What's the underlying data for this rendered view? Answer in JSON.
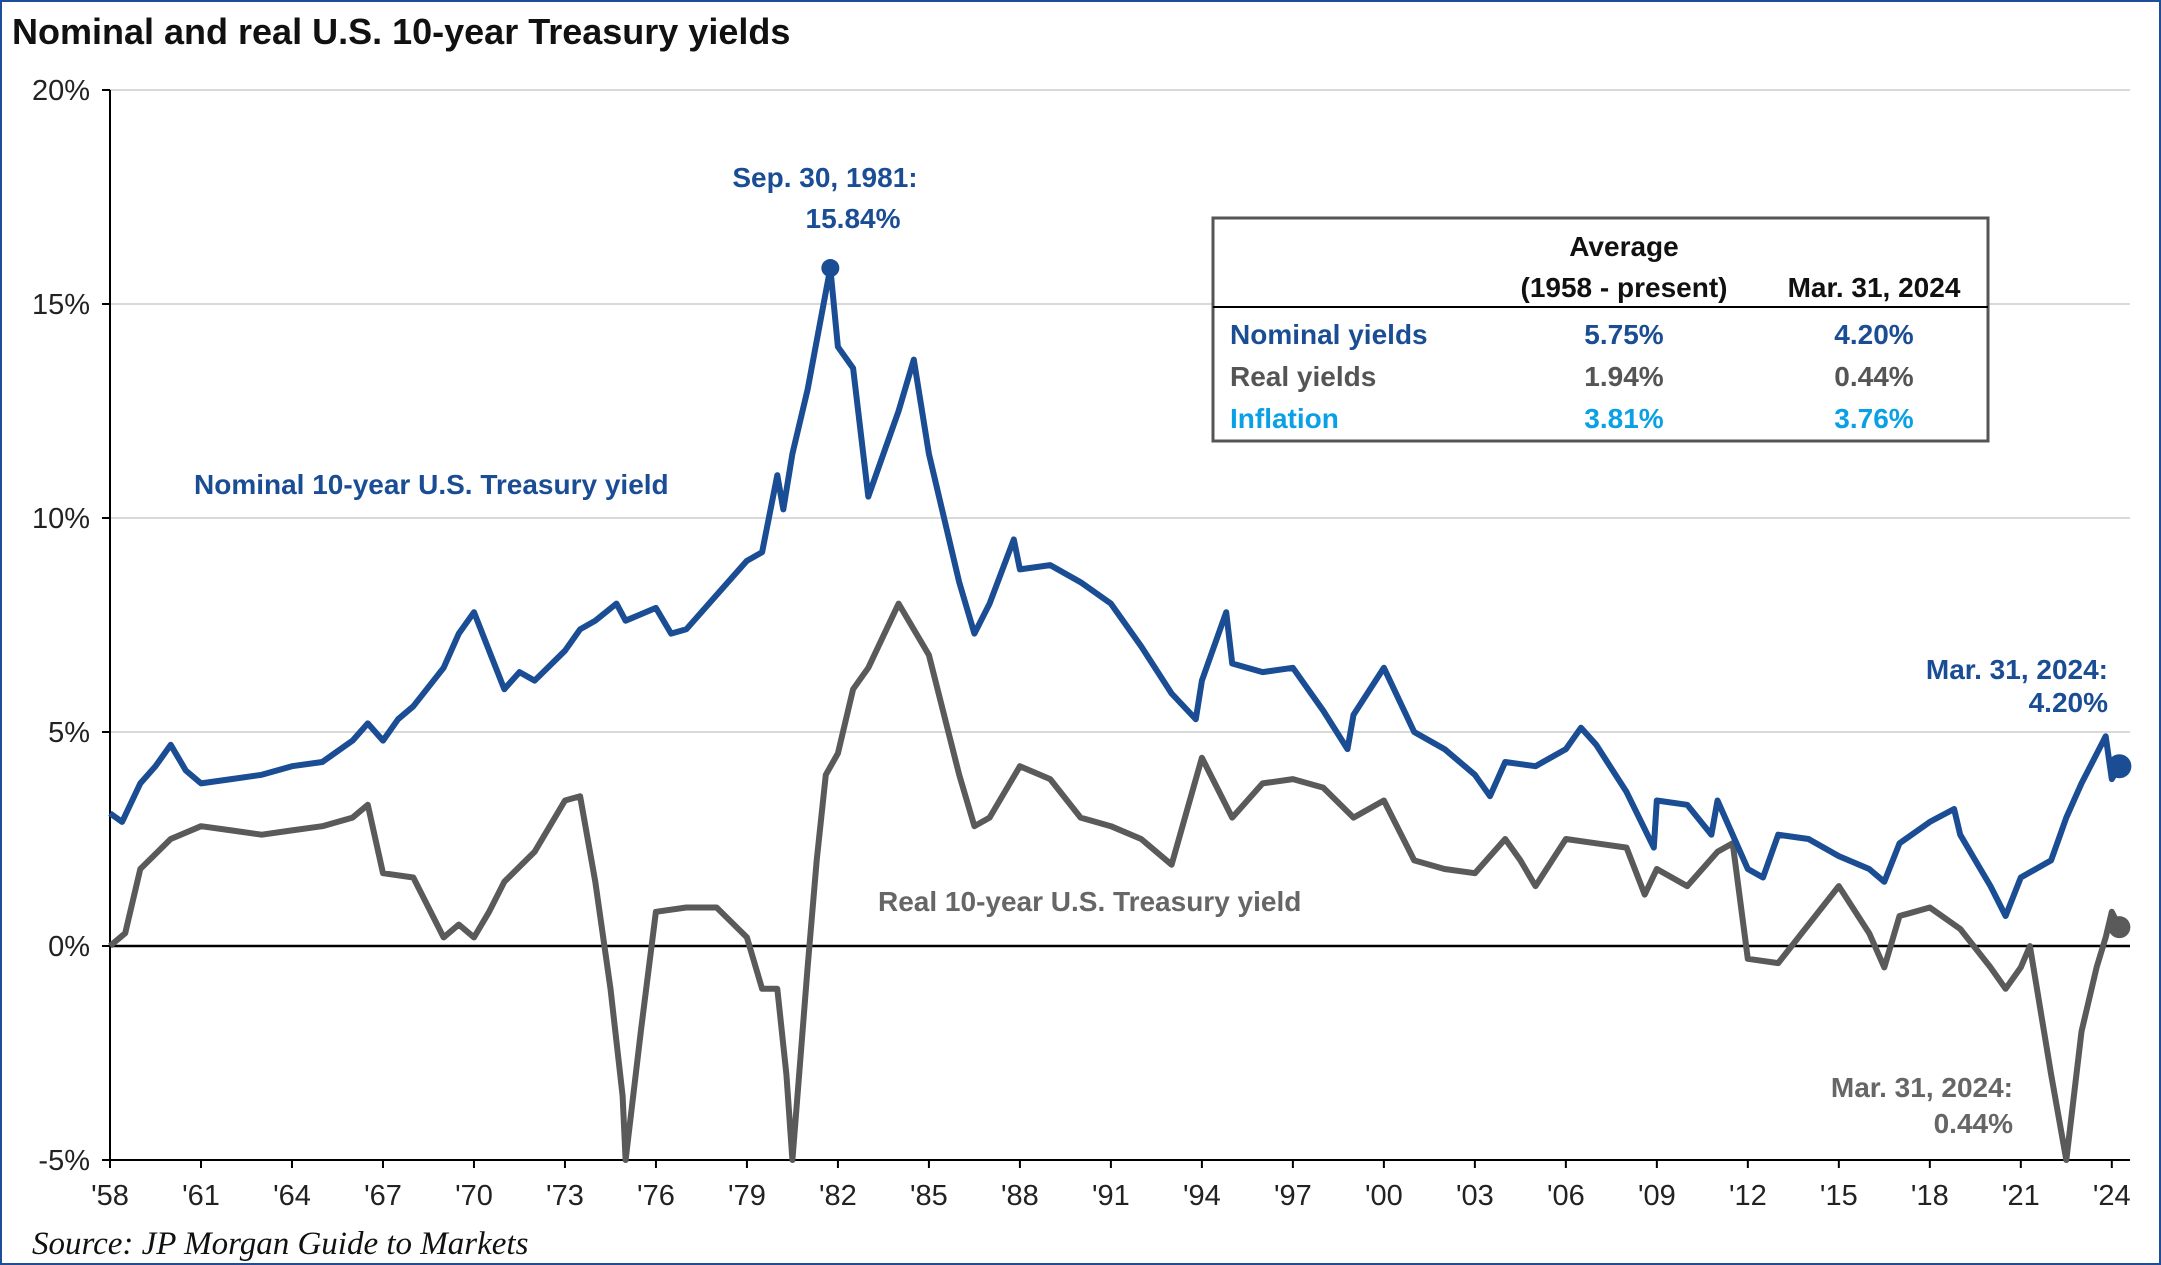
{
  "chart_data": {
    "type": "line",
    "title": "Nominal and real U.S. 10-year Treasury yields",
    "source": "Source: JP Morgan Guide to Markets",
    "y_ticks": [
      "20%",
      "15%",
      "10%",
      "5%",
      "0%",
      "-5%"
    ],
    "y_tick_values": [
      20,
      15,
      10,
      5,
      0,
      -5
    ],
    "ylim": [
      -5,
      20
    ],
    "xlim": [
      1958,
      2024.6
    ],
    "x_ticks": [
      "'58",
      "'61",
      "'64",
      "'67",
      "'70",
      "'73",
      "'76",
      "'79",
      "'82",
      "'85",
      "'88",
      "'91",
      "'94",
      "'97",
      "'00",
      "'03",
      "'06",
      "'09",
      "'12",
      "'15",
      "'18",
      "'21",
      "'24"
    ],
    "x_tick_values": [
      1958,
      1961,
      1964,
      1967,
      1970,
      1973,
      1976,
      1979,
      1982,
      1985,
      1988,
      1991,
      1994,
      1997,
      2000,
      2003,
      2006,
      2009,
      2012,
      2015,
      2018,
      2021,
      2024
    ],
    "grid": "horizontal",
    "colors": {
      "nominal": "#1a4d94",
      "real": "#5a5a5a",
      "inflation": "#0aa0e6",
      "grid": "#d9d9d9",
      "axis": "#000000",
      "frame": "#1f4e99"
    },
    "series": [
      {
        "name": "Nominal 10-year U.S. Treasury yield",
        "x": [
          1958.0,
          1958.4,
          1959.0,
          1959.5,
          1960.0,
          1960.5,
          1961.0,
          1962.0,
          1963.0,
          1964.0,
          1965.0,
          1966.0,
          1966.5,
          1967.0,
          1967.5,
          1968.0,
          1969.0,
          1969.5,
          1970.0,
          1970.5,
          1971.0,
          1971.5,
          1972.0,
          1973.0,
          1973.5,
          1974.0,
          1974.7,
          1975.0,
          1976.0,
          1976.5,
          1977.0,
          1978.0,
          1979.0,
          1979.5,
          1980.0,
          1980.2,
          1980.5,
          1981.0,
          1981.75,
          1982.0,
          1982.5,
          1983.0,
          1984.0,
          1984.5,
          1985.0,
          1986.0,
          1986.5,
          1987.0,
          1987.8,
          1988.0,
          1989.0,
          1990.0,
          1991.0,
          1992.0,
          1993.0,
          1993.8,
          1994.0,
          1994.8,
          1995.0,
          1996.0,
          1997.0,
          1998.0,
          1998.8,
          1999.0,
          2000.0,
          2001.0,
          2002.0,
          2003.0,
          2003.5,
          2004.0,
          2005.0,
          2006.0,
          2006.5,
          2007.0,
          2008.0,
          2008.9,
          2009.0,
          2010.0,
          2010.8,
          2011.0,
          2012.0,
          2012.5,
          2013.0,
          2014.0,
          2015.0,
          2016.0,
          2016.5,
          2017.0,
          2018.0,
          2018.8,
          2019.0,
          2019.5,
          2020.0,
          2020.5,
          2021.0,
          2022.0,
          2022.5,
          2023.0,
          2023.8,
          2024.0,
          2024.25
        ],
        "values": [
          3.1,
          2.9,
          3.8,
          4.2,
          4.7,
          4.1,
          3.8,
          3.9,
          4.0,
          4.2,
          4.3,
          4.8,
          5.2,
          4.8,
          5.3,
          5.6,
          6.5,
          7.3,
          7.8,
          6.9,
          6.0,
          6.4,
          6.2,
          6.9,
          7.4,
          7.6,
          8.0,
          7.6,
          7.9,
          7.3,
          7.4,
          8.2,
          9.0,
          9.2,
          11.0,
          10.2,
          11.5,
          13.0,
          15.84,
          14.0,
          13.5,
          10.5,
          12.5,
          13.7,
          11.5,
          8.5,
          7.3,
          8.0,
          9.5,
          8.8,
          8.9,
          8.5,
          8.0,
          7.0,
          5.9,
          5.3,
          6.2,
          7.8,
          6.6,
          6.4,
          6.5,
          5.5,
          4.6,
          5.4,
          6.5,
          5.0,
          4.6,
          4.0,
          3.5,
          4.3,
          4.2,
          4.6,
          5.1,
          4.7,
          3.6,
          2.3,
          3.4,
          3.3,
          2.6,
          3.4,
          1.8,
          1.6,
          2.6,
          2.5,
          2.1,
          1.8,
          1.5,
          2.4,
          2.9,
          3.2,
          2.6,
          2.0,
          1.4,
          0.7,
          1.6,
          2.0,
          3.0,
          3.8,
          4.9,
          3.9,
          4.2
        ]
      },
      {
        "name": "Real 10-year U.S. Treasury yield",
        "x": [
          1958.0,
          1958.5,
          1959.0,
          1960.0,
          1961.0,
          1962.0,
          1963.0,
          1964.0,
          1965.0,
          1966.0,
          1966.5,
          1967.0,
          1968.0,
          1969.0,
          1969.5,
          1970.0,
          1970.5,
          1971.0,
          1972.0,
          1973.0,
          1973.5,
          1974.0,
          1974.5,
          1974.9,
          1975.0,
          1975.5,
          1976.0,
          1977.0,
          1978.0,
          1979.0,
          1979.5,
          1980.0,
          1980.3,
          1980.5,
          1981.0,
          1981.3,
          1981.6,
          1982.0,
          1982.5,
          1983.0,
          1984.0,
          1985.0,
          1986.0,
          1986.5,
          1987.0,
          1988.0,
          1989.0,
          1990.0,
          1991.0,
          1992.0,
          1993.0,
          1994.0,
          1995.0,
          1996.0,
          1997.0,
          1998.0,
          1999.0,
          2000.0,
          2001.0,
          2002.0,
          2003.0,
          2004.0,
          2004.5,
          2005.0,
          2006.0,
          2007.0,
          2008.0,
          2008.6,
          2009.0,
          2010.0,
          2011.0,
          2011.5,
          2012.0,
          2013.0,
          2014.0,
          2015.0,
          2016.0,
          2016.5,
          2017.0,
          2018.0,
          2019.0,
          2020.0,
          2020.5,
          2021.0,
          2021.3,
          2022.0,
          2022.5,
          2023.0,
          2023.5,
          2023.8,
          2024.0,
          2024.25
        ],
        "values": [
          0.0,
          0.3,
          1.8,
          2.5,
          2.8,
          2.7,
          2.6,
          2.7,
          2.8,
          3.0,
          3.3,
          1.7,
          1.6,
          0.2,
          0.5,
          0.2,
          0.8,
          1.5,
          2.2,
          3.4,
          3.5,
          1.5,
          -1.0,
          -3.5,
          -5.0,
          -2.0,
          0.8,
          0.9,
          0.9,
          0.2,
          -1.0,
          -1.0,
          -3.0,
          -5.0,
          -0.5,
          2.0,
          4.0,
          4.5,
          6.0,
          6.5,
          8.0,
          6.8,
          4.0,
          2.8,
          3.0,
          4.2,
          3.9,
          3.0,
          2.8,
          2.5,
          1.9,
          4.4,
          3.0,
          3.8,
          3.9,
          3.7,
          3.0,
          3.4,
          2.0,
          1.8,
          1.7,
          2.5,
          2.0,
          1.4,
          2.5,
          2.4,
          2.3,
          1.2,
          1.8,
          1.4,
          2.2,
          2.4,
          -0.3,
          -0.4,
          0.5,
          1.4,
          0.3,
          -0.5,
          0.7,
          0.9,
          0.4,
          -0.5,
          -1.0,
          -0.5,
          0.0,
          -3.0,
          -5.0,
          -2.0,
          -0.5,
          0.2,
          0.8,
          0.44
        ]
      }
    ],
    "annotations": {
      "peak_line1": "Sep. 30, 1981:",
      "peak_line2": "15.84%",
      "nominal_series_label": "Nominal  10-year U.S.  Treasury yield",
      "real_series_label": "Real 10-year U.S.  Treasury yield",
      "nominal_end_line1": "Mar. 31, 2024:",
      "nominal_end_line2": "4.20%",
      "real_end_line1": "Mar. 31, 2024:",
      "real_end_line2": "0.44%"
    },
    "summary_table": {
      "header_top": "Average",
      "header_col1": "(1958 - present)",
      "header_col2": "Mar. 31, 2024",
      "rows": [
        {
          "label": "Nominal yields",
          "avg": "5.75%",
          "current": "4.20%",
          "color": "#1a4d94"
        },
        {
          "label": "Real yields",
          "avg": "1.94%",
          "current": "0.44%",
          "color": "#555555"
        },
        {
          "label": "Inflation",
          "avg": "3.81%",
          "current": "3.76%",
          "color": "#0aa0e6"
        }
      ]
    }
  }
}
